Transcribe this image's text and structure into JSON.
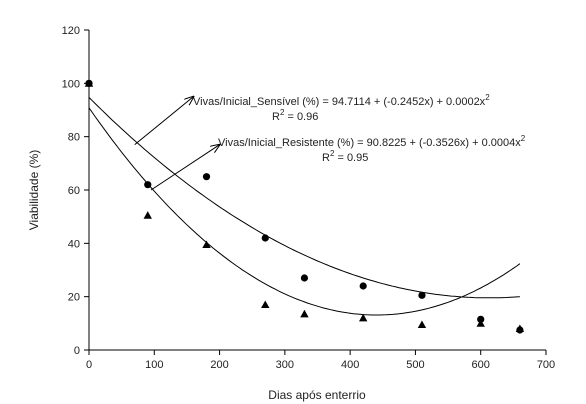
{
  "chart_data": {
    "type": "scatter",
    "title": "",
    "xlabel": "Dias após enterrio",
    "ylabel": "Viabilidade (%)",
    "xlim": [
      0,
      700
    ],
    "ylim": [
      0,
      120
    ],
    "x_ticks": [
      0,
      100,
      200,
      300,
      400,
      500,
      600,
      700
    ],
    "y_ticks": [
      0,
      20,
      40,
      60,
      80,
      100,
      120
    ],
    "grid": false,
    "legend": "none",
    "series": [
      {
        "marker": "circle",
        "color": "#000000",
        "x": [
          0,
          90,
          180,
          270,
          330,
          420,
          510,
          600,
          660
        ],
        "y": [
          100,
          62,
          65,
          42,
          27,
          24,
          20.5,
          11.5,
          7.5
        ],
        "fit": {
          "a": 94.7114,
          "b": -0.2452,
          "c": 0.0002,
          "x_range": [
            0,
            660
          ]
        }
      },
      {
        "marker": "triangle",
        "color": "#000000",
        "x": [
          0,
          90,
          180,
          270,
          330,
          420,
          510,
          600,
          660
        ],
        "y": [
          100,
          50.5,
          39.5,
          17,
          13.5,
          12,
          9.5,
          10,
          8
        ],
        "fit": {
          "a": 90.8225,
          "b": -0.3526,
          "c": 0.0004,
          "x_range": [
            0,
            660
          ]
        }
      }
    ],
    "annotations": [
      {
        "equation": "Vivas/Inicial_Sensível (%) = 94.7114 + (-0.2452x) + 0.0002x",
        "exponent": "2",
        "r2_label": "R",
        "r2_exponent": "2",
        "r2_value": " = 0.96",
        "arrow_from": [
          70,
          77
        ],
        "arrow_to": [
          160,
          95
        ]
      },
      {
        "equation": "Vivas/Inicial_Resistente (%) = 90.8225 + (-0.3526x) + 0.0004x",
        "exponent": "2",
        "r2_label": "R",
        "r2_exponent": "2",
        "r2_value": " = 0.95",
        "arrow_from": [
          95,
          60
        ],
        "arrow_to": [
          200,
          77
        ]
      }
    ]
  }
}
